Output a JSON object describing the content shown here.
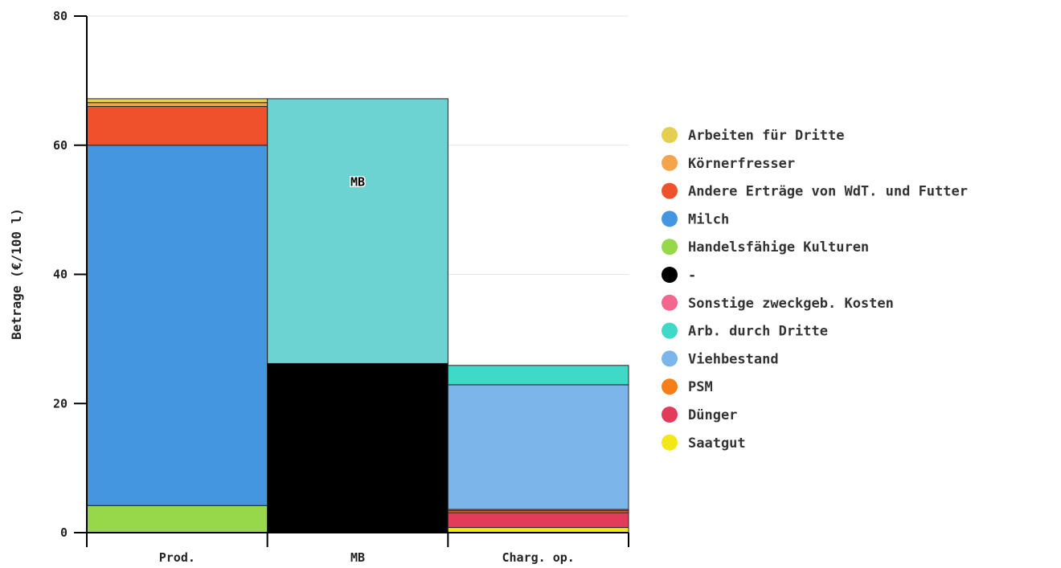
{
  "chart_data": {
    "type": "bar",
    "stacked": true,
    "categories": [
      "Prod.",
      "MB",
      "Charg. op."
    ],
    "ylabel": "Betrage (€/100 l)",
    "ylim": [
      0,
      80
    ],
    "yticks": [
      0,
      20,
      40,
      60,
      80
    ],
    "grid": true,
    "legend_position": "right",
    "bar_label": {
      "category": "MB",
      "series": "MB",
      "text": "MB"
    },
    "series": [
      {
        "name": "Handelsfähige Kulturen",
        "color": "#96d84a",
        "values": [
          4.2,
          0,
          0
        ]
      },
      {
        "name": "Milch",
        "color": "#4596e0",
        "values": [
          55.8,
          0,
          0
        ]
      },
      {
        "name": "Andere Erträge von WdT. und Futter",
        "color": "#ef512c",
        "values": [
          6.0,
          0,
          0
        ]
      },
      {
        "name": "Körnerfresser",
        "color": "#f4a44a",
        "values": [
          0.6,
          0,
          0
        ]
      },
      {
        "name": "Arbeiten für Dritte",
        "color": "#e6ce50",
        "values": [
          0.6,
          0,
          0
        ]
      },
      {
        "name": "-",
        "color": "#000000",
        "values": [
          0,
          26.2,
          0
        ]
      },
      {
        "name": "MB",
        "color": "#6dd3d2",
        "values": [
          0,
          41.0,
          0
        ]
      },
      {
        "name": "Saatgut",
        "color": "#f2e817",
        "values": [
          0,
          0,
          0.8
        ]
      },
      {
        "name": "Dünger",
        "color": "#e33c5a",
        "values": [
          0,
          0,
          2.3
        ]
      },
      {
        "name": "PSM",
        "color": "#f57f17",
        "values": [
          0,
          0,
          0.3
        ]
      },
      {
        "name": "Sonstige zweckgeb. Kosten",
        "color": "#f2668f",
        "values": [
          0,
          0,
          0.2
        ]
      },
      {
        "name": "Viehbestand",
        "color": "#7cb5ea",
        "values": [
          0,
          0,
          19.3
        ]
      },
      {
        "name": "Arb. durch Dritte",
        "color": "#3fd9c8",
        "values": [
          0,
          0,
          3.0
        ]
      }
    ],
    "legend": [
      {
        "name": "Arbeiten für Dritte",
        "color": "#e6ce50"
      },
      {
        "name": "Körnerfresser",
        "color": "#f4a44a"
      },
      {
        "name": "Andere Erträge von WdT. und Futter",
        "color": "#ef512c"
      },
      {
        "name": "Milch",
        "color": "#4596e0"
      },
      {
        "name": "Handelsfähige Kulturen",
        "color": "#96d84a"
      },
      {
        "name": "-",
        "color": "#000000"
      },
      {
        "name": "Sonstige zweckgeb. Kosten",
        "color": "#f2668f"
      },
      {
        "name": "Arb. durch Dritte",
        "color": "#3fd9c8"
      },
      {
        "name": "Viehbestand",
        "color": "#7cb5ea"
      },
      {
        "name": "PSM",
        "color": "#f57f17"
      },
      {
        "name": "Dünger",
        "color": "#e33c5a"
      },
      {
        "name": "Saatgut",
        "color": "#f2e817"
      }
    ]
  }
}
